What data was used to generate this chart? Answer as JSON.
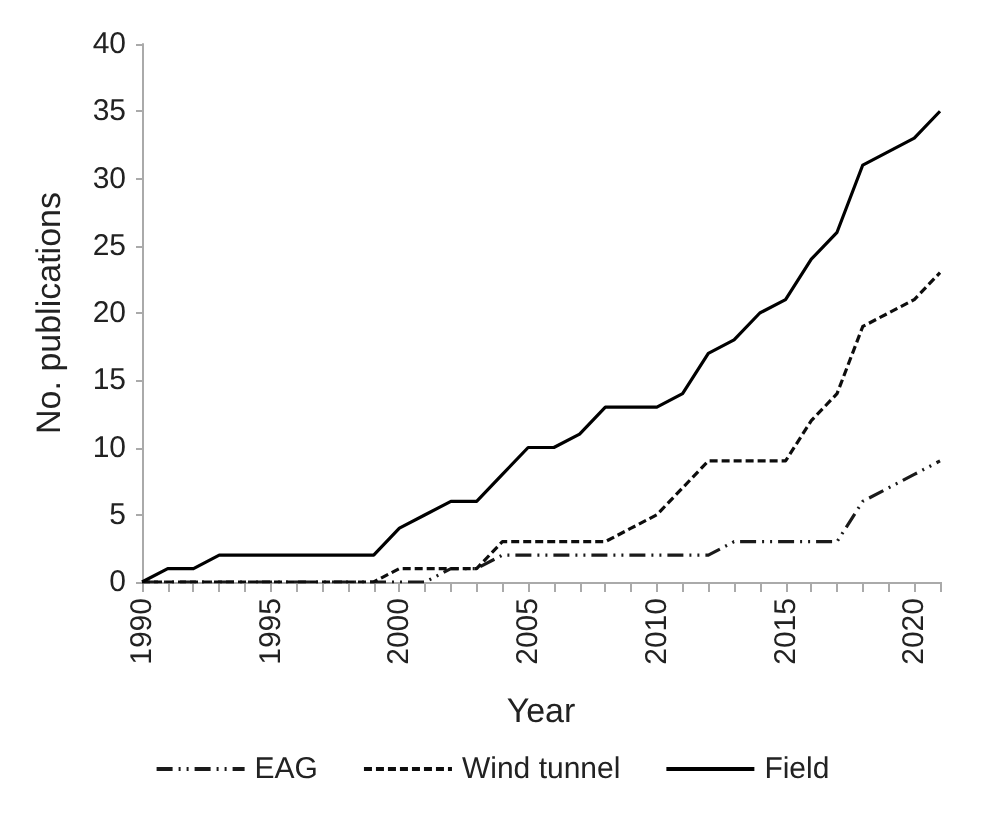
{
  "chart_data": {
    "type": "line",
    "xlabel": "Year",
    "ylabel": "No. publications",
    "x": [
      1990,
      1991,
      1992,
      1993,
      1994,
      1995,
      1996,
      1997,
      1998,
      1999,
      2000,
      2001,
      2002,
      2003,
      2004,
      2005,
      2006,
      2007,
      2008,
      2009,
      2010,
      2011,
      2012,
      2013,
      2014,
      2015,
      2016,
      2017,
      2018,
      2019,
      2020,
      2021
    ],
    "series": [
      {
        "name": "EAG",
        "color": "#1a1a1a",
        "line_style": "dashdot",
        "values": [
          0,
          0,
          0,
          0,
          0,
          0,
          0,
          0,
          0,
          0,
          0,
          0,
          1,
          1,
          2,
          2,
          2,
          2,
          2,
          2,
          2,
          2,
          2,
          3,
          3,
          3,
          3,
          3,
          6,
          7,
          8,
          9
        ]
      },
      {
        "name": "Wind tunnel",
        "color": "#0d0d0d",
        "line_style": "dashed",
        "values": [
          0,
          0,
          0,
          0,
          0,
          0,
          0,
          0,
          0,
          0,
          1,
          1,
          1,
          1,
          3,
          3,
          3,
          3,
          3,
          4,
          5,
          7,
          9,
          9,
          9,
          9,
          12,
          14,
          19,
          20,
          21,
          23
        ]
      },
      {
        "name": "Field",
        "color": "#000000",
        "line_style": "solid",
        "values": [
          0,
          1,
          1,
          2,
          2,
          2,
          2,
          2,
          2,
          2,
          4,
          5,
          6,
          6,
          8,
          10,
          10,
          11,
          13,
          13,
          13,
          14,
          17,
          18,
          20,
          21,
          24,
          26,
          31,
          32,
          33,
          35
        ]
      }
    ],
    "xlim": [
      1990,
      2021
    ],
    "xticks": [
      1990,
      1995,
      2000,
      2005,
      2010,
      2015,
      2020
    ],
    "ylim": [
      0,
      40
    ],
    "yticks": [
      0,
      5,
      10,
      15,
      20,
      25,
      30,
      35,
      40
    ],
    "grid": false,
    "legend": "bottom",
    "marker": "none"
  }
}
